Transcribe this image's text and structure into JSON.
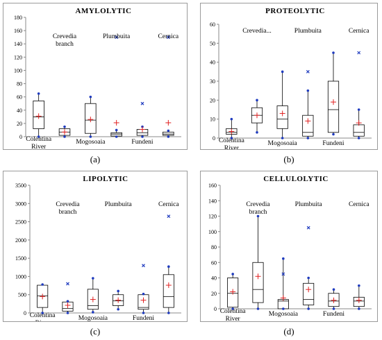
{
  "chart_data": [
    {
      "type": "box",
      "title": "AMYLOLYTIC",
      "caption": "(a)",
      "ylim": [
        0,
        180
      ],
      "yticks": [
        0,
        20,
        40,
        60,
        80,
        100,
        120,
        140,
        160,
        180
      ],
      "groups": [
        {
          "label": "Colentina River",
          "box": {
            "min": 0,
            "q1": 12,
            "median": 30,
            "q3": 54,
            "max": 65,
            "mean": 31
          },
          "outliers": [],
          "labelLines": [
            "Colentina",
            "River"
          ],
          "labelPos": "bottom"
        },
        {
          "label": "Crevedia branch",
          "box": {
            "min": 0,
            "q1": 2,
            "median": 7,
            "q3": 12,
            "max": 15,
            "mean": 7
          },
          "outliers": [],
          "labelLines": [
            "Crevedia",
            "branch"
          ],
          "labelPos": "top"
        },
        {
          "label": "Mogosoaia",
          "box": {
            "min": 0,
            "q1": 5,
            "median": 25,
            "q3": 50,
            "max": 60,
            "mean": 26
          },
          "outliers": [],
          "labelLines": [
            "Mogosoaia"
          ],
          "labelPos": "bottom"
        },
        {
          "label": "Plumbuita",
          "box": {
            "min": 0,
            "q1": 1,
            "median": 4,
            "q3": 6,
            "max": 10,
            "mean": 21
          },
          "outliers": [
            150
          ],
          "labelLines": [
            "Plumbuita"
          ],
          "labelPos": "top"
        },
        {
          "label": "Fundeni",
          "box": {
            "min": 0,
            "q1": 2,
            "median": 6,
            "q3": 11,
            "max": 15,
            "mean": 11
          },
          "outliers": [
            50
          ],
          "labelLines": [
            "Fundeni"
          ],
          "labelPos": "bottom"
        },
        {
          "label": "Cernica",
          "box": {
            "min": 0,
            "q1": 2,
            "median": 4,
            "q3": 7,
            "max": 9,
            "mean": 21
          },
          "outliers": [
            150
          ],
          "labelLines": [
            "Cernica"
          ],
          "labelPos": "top"
        }
      ]
    },
    {
      "type": "box",
      "title": "PROTEOLYTIC",
      "caption": "(b)",
      "ylim": [
        0,
        60
      ],
      "yticks": [
        0,
        10,
        20,
        30,
        40,
        50,
        60
      ],
      "groups": [
        {
          "label": "Colentina River",
          "box": {
            "min": 0,
            "q1": 2,
            "median": 3,
            "q3": 5,
            "max": 10,
            "mean": 3.5
          },
          "outliers": [],
          "labelLines": [
            "Colentina",
            "River"
          ],
          "labelPos": "bottom"
        },
        {
          "label": "Crevedia...",
          "box": {
            "min": 3,
            "q1": 8,
            "median": 12,
            "q3": 16,
            "max": 20,
            "mean": 12
          },
          "outliers": [],
          "labelLines": [
            "Crevedia..."
          ],
          "labelPos": "top"
        },
        {
          "label": "Mogosoaia",
          "box": {
            "min": 0,
            "q1": 5,
            "median": 10,
            "q3": 17,
            "max": 35,
            "mean": 13
          },
          "outliers": [],
          "labelLines": [
            "Mogosoaia"
          ],
          "labelPos": "bottom"
        },
        {
          "label": "Plumbuita",
          "box": {
            "min": 0,
            "q1": 1,
            "median": 3,
            "q3": 12,
            "max": 25,
            "mean": 9
          },
          "outliers": [
            35
          ],
          "labelLines": [
            "Plumbuita"
          ],
          "labelPos": "top"
        },
        {
          "label": "Fundeni",
          "box": {
            "min": 2,
            "q1": 3,
            "median": 15,
            "q3": 30,
            "max": 45,
            "mean": 19
          },
          "outliers": [],
          "labelLines": [
            "Fundeni"
          ],
          "labelPos": "bottom"
        },
        {
          "label": "Cernica",
          "box": {
            "min": 0,
            "q1": 1,
            "median": 3,
            "q3": 7,
            "max": 15,
            "mean": 8
          },
          "outliers": [
            45
          ],
          "labelLines": [
            "Cernica"
          ],
          "labelPos": "top"
        }
      ]
    },
    {
      "type": "box",
      "title": "LIPOLYTIC",
      "caption": "(c)",
      "ylim": [
        0,
        3500
      ],
      "yticks": [
        0,
        500,
        1000,
        1500,
        2000,
        2500,
        3000,
        3500
      ],
      "groups": [
        {
          "label": "Colentina River",
          "box": {
            "min": 0,
            "q1": 150,
            "median": 470,
            "q3": 760,
            "max": 780,
            "mean": 450
          },
          "outliers": [],
          "labelLines": [
            "Colentina",
            "River"
          ],
          "labelPos": "bottom"
        },
        {
          "label": "Crevedia branch",
          "box": {
            "min": 0,
            "q1": 50,
            "median": 120,
            "q3": 300,
            "max": 320,
            "mean": 210
          },
          "outliers": [
            800
          ],
          "labelLines": [
            "Crevedia",
            "branch"
          ],
          "labelPos": "top"
        },
        {
          "label": "Mogosoaia",
          "box": {
            "min": 20,
            "q1": 100,
            "median": 200,
            "q3": 650,
            "max": 950,
            "mean": 370
          },
          "outliers": [],
          "labelLines": [
            "Mogosoaia"
          ],
          "labelPos": "bottom"
        },
        {
          "label": "Plumbuita",
          "box": {
            "min": 100,
            "q1": 200,
            "median": 330,
            "q3": 500,
            "max": 600,
            "mean": 350
          },
          "outliers": [],
          "labelLines": [
            "Plumbuita"
          ],
          "labelPos": "top"
        },
        {
          "label": "Fundeni",
          "box": {
            "min": 0,
            "q1": 100,
            "median": 150,
            "q3": 500,
            "max": 520,
            "mean": 350
          },
          "outliers": [
            1300
          ],
          "labelLines": [
            "Fundeni"
          ],
          "labelPos": "bottom"
        },
        {
          "label": "Cernica",
          "box": {
            "min": 0,
            "q1": 150,
            "median": 450,
            "q3": 1050,
            "max": 1270,
            "mean": 760
          },
          "outliers": [
            2650
          ],
          "labelLines": [
            "Cernica"
          ],
          "labelPos": "top"
        }
      ]
    },
    {
      "type": "box",
      "title": "CELLULOLYTIC",
      "caption": "(d)",
      "ylim": [
        0,
        160
      ],
      "yticks": [
        0,
        20,
        40,
        60,
        80,
        100,
        120,
        140,
        160
      ],
      "groups": [
        {
          "label": "Colentina River",
          "box": {
            "min": 0,
            "q1": 2,
            "median": 20,
            "q3": 40,
            "max": 45,
            "mean": 22
          },
          "outliers": [],
          "labelLines": [
            "Colentina",
            "River"
          ],
          "labelPos": "bottom"
        },
        {
          "label": "Crevedia branch",
          "box": {
            "min": 0,
            "q1": 8,
            "median": 25,
            "q3": 60,
            "max": 120,
            "mean": 42
          },
          "outliers": [],
          "labelLines": [
            "Crevedia",
            "branch"
          ],
          "labelPos": "top"
        },
        {
          "label": "Mogosoaia",
          "box": {
            "min": 0,
            "q1": 0,
            "median": 10,
            "q3": 12,
            "max": 65,
            "mean": 14
          },
          "outliers": [
            45
          ],
          "labelLines": [
            "Mogosoaia"
          ],
          "labelPos": "bottom"
        },
        {
          "label": "Plumbuita",
          "box": {
            "min": 0,
            "q1": 5,
            "median": 12,
            "q3": 33,
            "max": 40,
            "mean": 25
          },
          "outliers": [
            105
          ],
          "labelLines": [
            "Plumbuita"
          ],
          "labelPos": "top"
        },
        {
          "label": "Fundeni",
          "box": {
            "min": 0,
            "q1": 3,
            "median": 10,
            "q3": 20,
            "max": 25,
            "mean": 11
          },
          "outliers": [],
          "labelLines": [
            "Fundeni"
          ],
          "labelPos": "bottom"
        },
        {
          "label": "Cernica",
          "box": {
            "min": 0,
            "q1": 3,
            "median": 10,
            "q3": 15,
            "max": 30,
            "mean": 11
          },
          "outliers": [],
          "labelLines": [
            "Cernica"
          ],
          "labelPos": "top"
        }
      ]
    }
  ],
  "colors": {
    "box": "#000000",
    "whisker_end": "#1f3bbf",
    "mean": "#e02020",
    "axis": "#888888",
    "frame": "#9a9a9a"
  }
}
